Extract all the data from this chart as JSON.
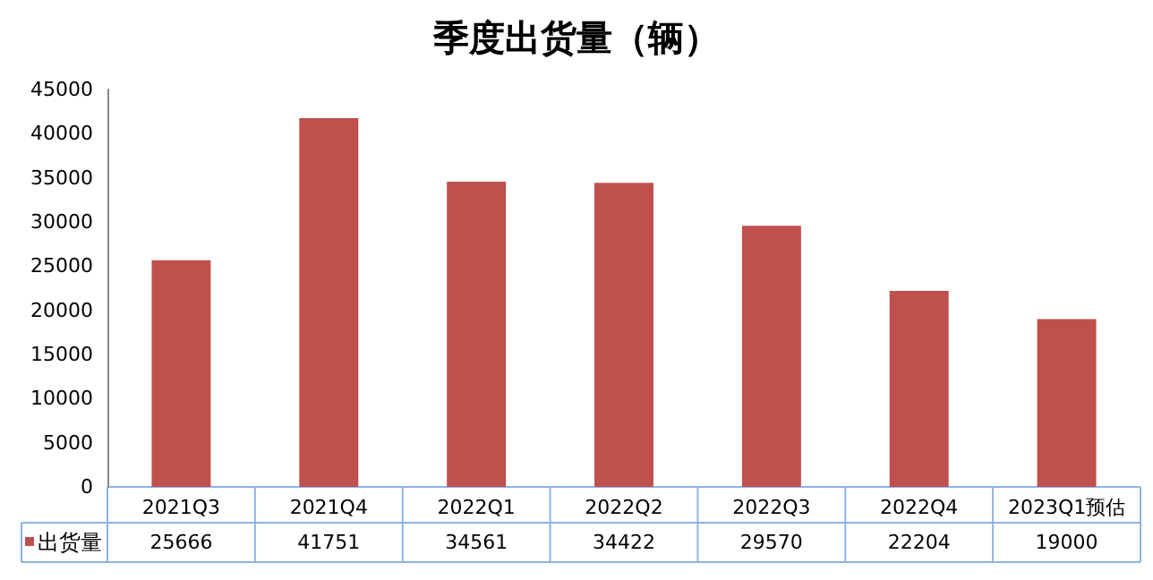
{
  "chart_data": {
    "type": "bar",
    "title": "季度出货量（辆）",
    "categories": [
      "2021Q3",
      "2021Q4",
      "2022Q1",
      "2022Q2",
      "2022Q3",
      "2022Q4",
      "2023Q1预估"
    ],
    "series": [
      {
        "name": "出货量",
        "color": "#c0504d",
        "values": [
          25666,
          41751,
          34561,
          34422,
          29570,
          22204,
          19000
        ]
      }
    ],
    "ylim": [
      0,
      45000
    ],
    "yticks": [
      0,
      5000,
      10000,
      15000,
      20000,
      25000,
      30000,
      35000,
      40000,
      45000
    ],
    "grid": false,
    "legend": "bottom left",
    "data_labels": true
  }
}
